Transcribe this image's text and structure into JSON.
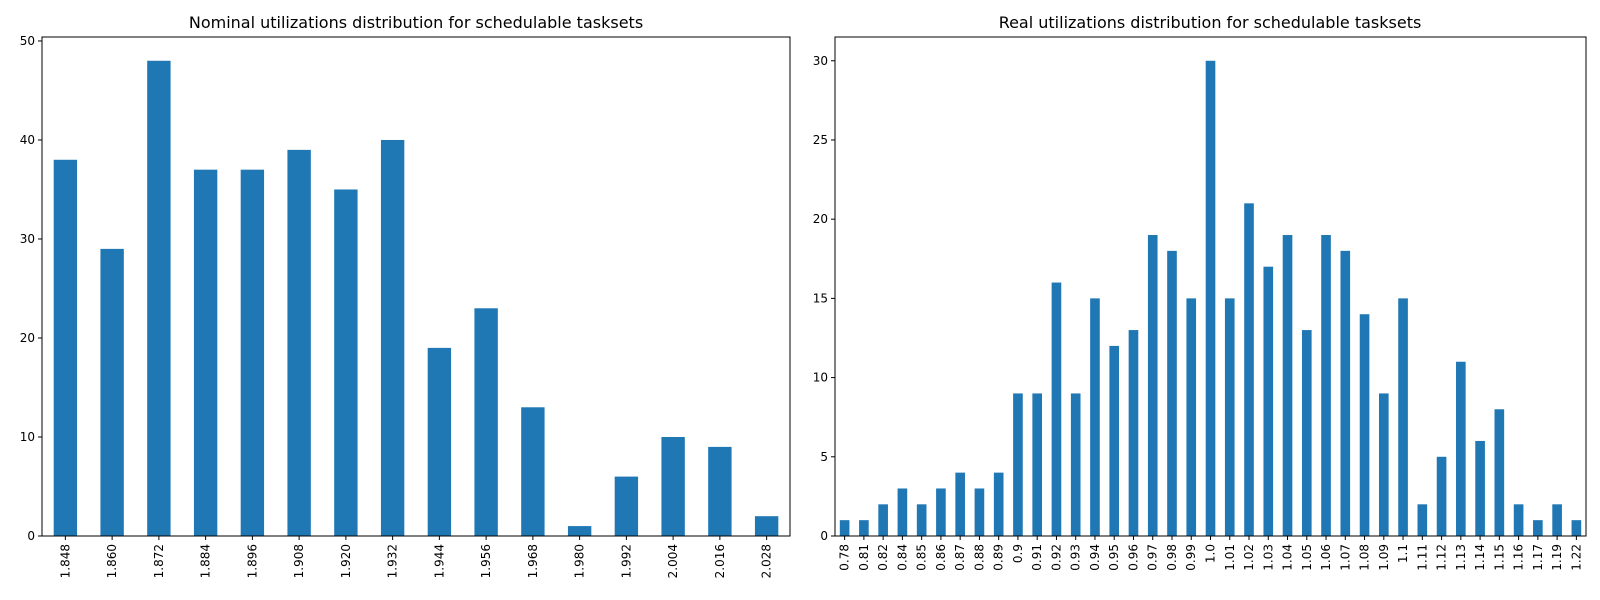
{
  "chart_data": [
    {
      "type": "bar",
      "title": "Nominal utilizations distribution for schedulable tasksets",
      "xlabel": "",
      "ylabel": "",
      "ylim": [
        0,
        50.4
      ],
      "yticks": [
        0,
        10,
        20,
        30,
        40,
        50
      ],
      "grid": false,
      "color": "#1f77b4",
      "categories": [
        "1.848",
        "1.860",
        "1.872",
        "1.884",
        "1.896",
        "1.908",
        "1.920",
        "1.932",
        "1.944",
        "1.956",
        "1.968",
        "1.980",
        "1.992",
        "2.004",
        "2.016",
        "2.028"
      ],
      "values": [
        38,
        29,
        48,
        37,
        37,
        39,
        35,
        40,
        19,
        23,
        13,
        1,
        6,
        10,
        9,
        2
      ]
    },
    {
      "type": "bar",
      "title": "Real utilizations distribution for schedulable tasksets",
      "xlabel": "",
      "ylabel": "",
      "ylim": [
        0,
        31.5
      ],
      "yticks": [
        0,
        5,
        10,
        15,
        20,
        25,
        30
      ],
      "grid": false,
      "color": "#1f77b4",
      "categories": [
        "0.78",
        "0.81",
        "0.82",
        "0.84",
        "0.85",
        "0.86",
        "0.87",
        "0.88",
        "0.89",
        "0.9",
        "0.91",
        "0.92",
        "0.93",
        "0.94",
        "0.95",
        "0.96",
        "0.97",
        "0.98",
        "0.99",
        "1.0",
        "1.01",
        "1.02",
        "1.03",
        "1.04",
        "1.05",
        "1.06",
        "1.07",
        "1.08",
        "1.09",
        "1.1",
        "1.11",
        "1.12",
        "1.13",
        "1.14",
        "1.15",
        "1.16",
        "1.17",
        "1.19",
        "1.22"
      ],
      "values": [
        1,
        1,
        2,
        3,
        2,
        3,
        4,
        3,
        4,
        9,
        9,
        16,
        9,
        15,
        12,
        13,
        19,
        18,
        15,
        30,
        15,
        21,
        17,
        19,
        13,
        19,
        18,
        14,
        9,
        15,
        2,
        5,
        11,
        6,
        8,
        2,
        1,
        2,
        1
      ]
    }
  ]
}
